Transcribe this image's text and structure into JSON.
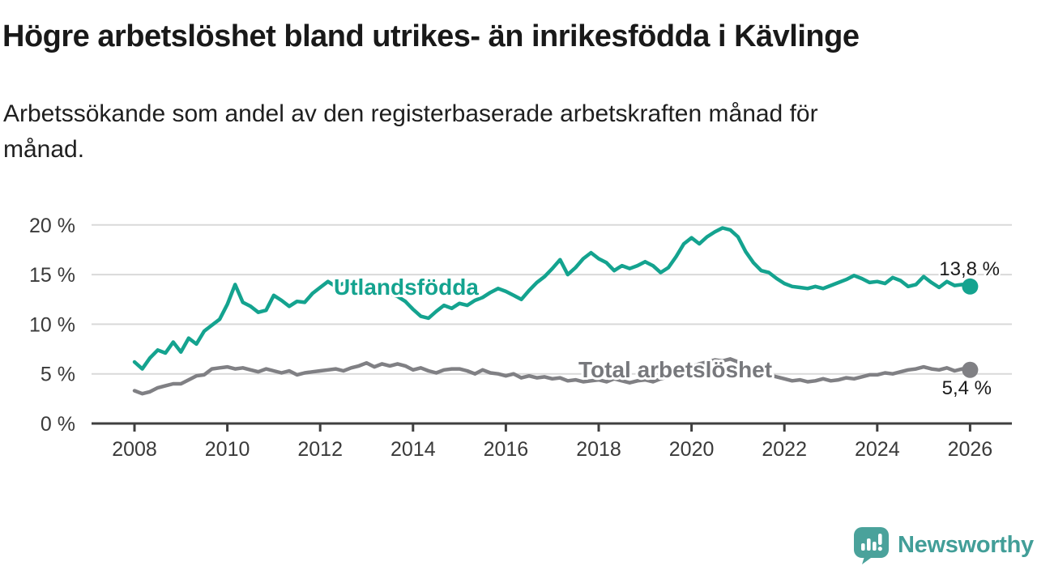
{
  "header": {
    "title": "Högre arbetslöshet bland utrikes- än inrikesfödda i Kävlinge",
    "subtitle": "Arbetssökande som andel av den registerbaserade arbetskraften månad för månad."
  },
  "chart_data": {
    "type": "line",
    "title": "Högre arbetslöshet bland utrikes- än inrikesfödda i Kävlinge",
    "xlabel": "",
    "ylabel": "",
    "grid": true,
    "x_start": 2008.0,
    "x_step_years": 0.1666667,
    "xlim": [
      2007.1,
      2026.9
    ],
    "ylim": [
      0,
      21
    ],
    "xticks": [
      2008,
      2010,
      2012,
      2014,
      2016,
      2018,
      2020,
      2022,
      2024,
      2026
    ],
    "yticks": [
      {
        "value": 0,
        "label": "0 %"
      },
      {
        "value": 5,
        "label": "5 %"
      },
      {
        "value": 10,
        "label": "10 %"
      },
      {
        "value": 15,
        "label": "15 %"
      },
      {
        "value": 20,
        "label": "20 %"
      }
    ],
    "series": [
      {
        "name": "Utlandsfödda",
        "color": "#14a38f",
        "end_label": "13,8 %",
        "end_value": 13.8,
        "values": [
          6.2,
          5.5,
          6.6,
          7.4,
          7.1,
          8.2,
          7.2,
          8.6,
          8.0,
          9.3,
          9.9,
          10.5,
          12.0,
          14.0,
          12.2,
          11.8,
          11.2,
          11.4,
          12.9,
          12.4,
          11.8,
          12.3,
          12.2,
          13.1,
          13.7,
          14.3,
          13.8,
          14.1,
          13.7,
          13.9,
          13.6,
          13.9,
          13.4,
          13.1,
          12.8,
          12.3,
          11.5,
          10.8,
          10.6,
          11.3,
          11.9,
          11.6,
          12.1,
          11.9,
          12.4,
          12.7,
          13.2,
          13.6,
          13.3,
          12.9,
          12.5,
          13.4,
          14.2,
          14.8,
          15.6,
          16.5,
          15.0,
          15.7,
          16.6,
          17.2,
          16.6,
          16.2,
          15.4,
          15.9,
          15.6,
          15.9,
          16.3,
          15.9,
          15.2,
          15.7,
          16.8,
          18.1,
          18.7,
          18.1,
          18.8,
          19.3,
          19.7,
          19.5,
          18.8,
          17.3,
          16.2,
          15.4,
          15.2,
          14.6,
          14.1,
          13.8,
          13.7,
          13.6,
          13.8,
          13.6,
          13.9,
          14.2,
          14.5,
          14.9,
          14.6,
          14.2,
          14.3,
          14.1,
          14.7,
          14.4,
          13.8,
          14.0,
          14.8,
          14.2,
          13.7,
          14.3,
          13.9,
          14.0,
          13.8
        ]
      },
      {
        "name": "Total arbetslöshet",
        "color": "#808084",
        "end_label": "5,4 %",
        "end_value": 5.4,
        "values": [
          3.3,
          3.0,
          3.2,
          3.6,
          3.8,
          4.0,
          4.0,
          4.4,
          4.8,
          4.9,
          5.5,
          5.6,
          5.7,
          5.5,
          5.6,
          5.4,
          5.2,
          5.5,
          5.3,
          5.1,
          5.3,
          4.9,
          5.1,
          5.2,
          5.3,
          5.4,
          5.5,
          5.3,
          5.6,
          5.8,
          6.1,
          5.7,
          6.0,
          5.8,
          6.0,
          5.8,
          5.4,
          5.6,
          5.3,
          5.1,
          5.4,
          5.5,
          5.5,
          5.3,
          5.0,
          5.4,
          5.1,
          5.0,
          4.8,
          5.0,
          4.6,
          4.8,
          4.6,
          4.7,
          4.5,
          4.6,
          4.3,
          4.4,
          4.2,
          4.3,
          4.4,
          4.2,
          4.5,
          4.3,
          4.1,
          4.3,
          4.4,
          4.2,
          4.5,
          4.7,
          5.0,
          5.4,
          5.7,
          6.0,
          6.2,
          6.4,
          6.3,
          6.5,
          6.2,
          5.8,
          5.4,
          5.1,
          4.9,
          4.7,
          4.5,
          4.3,
          4.4,
          4.2,
          4.3,
          4.5,
          4.3,
          4.4,
          4.6,
          4.5,
          4.7,
          4.9,
          4.9,
          5.1,
          5.0,
          5.2,
          5.4,
          5.5,
          5.7,
          5.5,
          5.4,
          5.6,
          5.3,
          5.5,
          5.4
        ]
      }
    ]
  },
  "footer": {
    "brand": "Newsworthy",
    "logo_icon": "newsworthy-bubble-barchart-icon",
    "brand_color": "#429e98"
  },
  "colors": {
    "line_utlandsfodda": "#14a38f",
    "line_total": "#808084",
    "gridline": "#d9d9d9",
    "axis": "#3f3f3f",
    "text_dark": "#1a1a1a",
    "tick_text": "#3a3a3a"
  }
}
